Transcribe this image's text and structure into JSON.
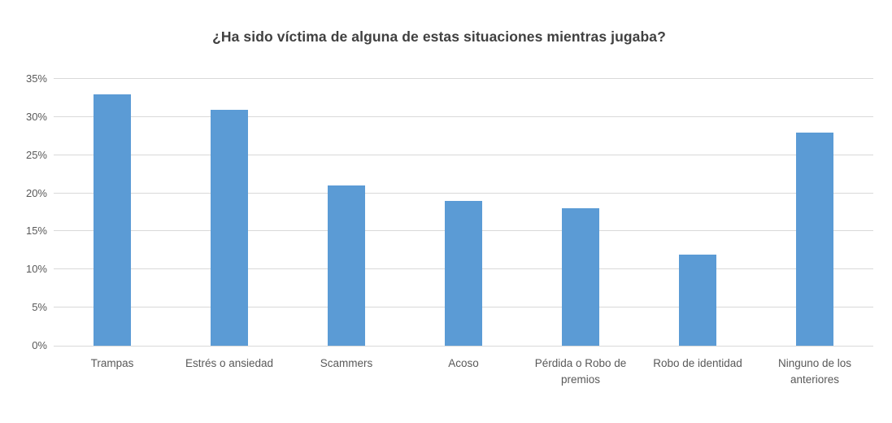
{
  "title": "¿Ha sido víctima de alguna de estas situaciones mientras jugaba?",
  "chart_data": {
    "type": "bar",
    "title": "¿Ha sido víctima de alguna de estas situaciones mientras jugaba?",
    "categories": [
      "Trampas",
      "Estrés o ansiedad",
      "Scammers",
      "Acoso",
      "Pérdida o Robo de premios",
      "Robo de identidad",
      "Ninguno de los anteriores"
    ],
    "values": [
      33,
      31,
      21,
      19,
      18,
      12,
      28
    ],
    "unit": "%",
    "xlabel": "",
    "ylabel": "",
    "ylim": [
      0,
      35
    ],
    "ytick_step": 5,
    "ytick_labels": [
      "0%",
      "5%",
      "10%",
      "15%",
      "20%",
      "25%",
      "30%",
      "35%"
    ],
    "grid": true,
    "legend": false,
    "series_name": ""
  },
  "colors": {
    "bar": "#5B9BD5",
    "gridline": "#D9D9D9",
    "axis_label": "#595959",
    "title": "#404040",
    "background": "#FFFFFF"
  }
}
